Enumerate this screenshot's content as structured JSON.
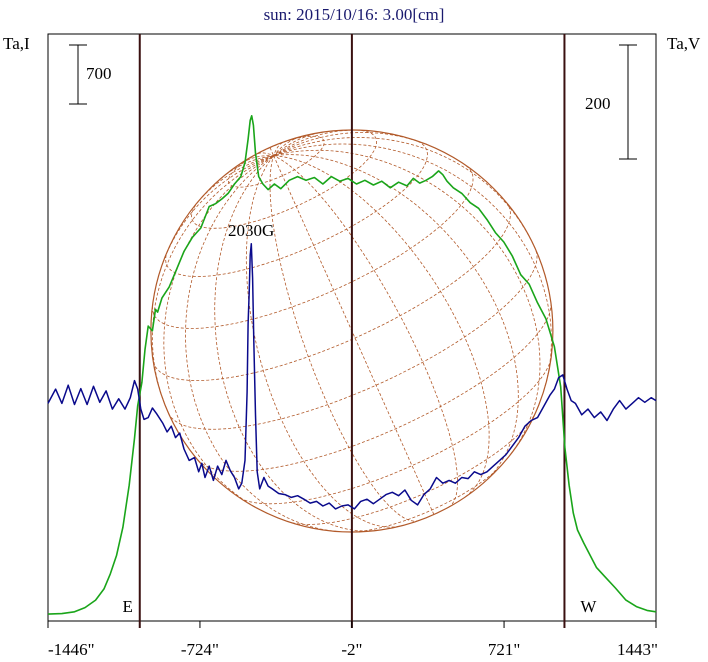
{
  "chart_data": {
    "type": "line",
    "title": "sun: 2015/10/16: 3.00[cm]",
    "left_axis_label": "Ta,I",
    "right_axis_label": "Ta,V",
    "left_scale_bar": "700",
    "right_scale_bar": "200",
    "x_ticks": [
      "-1446\"",
      "-724\"",
      "-2\"",
      "721\"",
      "1443\""
    ],
    "x_tick_values": [
      -1446,
      -724,
      -2,
      721,
      1443
    ],
    "xlim": [
      -1446,
      1443
    ],
    "limb_markers": [
      {
        "label": "E",
        "x": -1010
      },
      {
        "label": "W",
        "x": 1008
      }
    ],
    "center_line_x": -2,
    "annotations": [
      {
        "text": "2030G",
        "x": -490
      }
    ],
    "colors": {
      "intensity": "#1aa51a",
      "polarization": "#0a0a8c",
      "disk": "#b25a2a",
      "frame": "#000000",
      "title": "#1a1a6e"
    },
    "series": [
      {
        "key": "intensity",
        "points": [
          [
            -1446,
            20
          ],
          [
            -1380,
            26
          ],
          [
            -1320,
            45
          ],
          [
            -1270,
            90
          ],
          [
            -1220,
            170
          ],
          [
            -1180,
            290
          ],
          [
            -1150,
            450
          ],
          [
            -1120,
            650
          ],
          [
            -1090,
            950
          ],
          [
            -1060,
            1400
          ],
          [
            -1035,
            1900
          ],
          [
            -1020,
            2250
          ],
          [
            -1000,
            2500
          ],
          [
            -985,
            2850
          ],
          [
            -970,
            3100
          ],
          [
            -950,
            3050
          ],
          [
            -935,
            3280
          ],
          [
            -925,
            3250
          ],
          [
            -905,
            3400
          ],
          [
            -870,
            3520
          ],
          [
            -840,
            3680
          ],
          [
            -800,
            3900
          ],
          [
            -760,
            4050
          ],
          [
            -720,
            4150
          ],
          [
            -680,
            4380
          ],
          [
            -650,
            4410
          ],
          [
            -620,
            4460
          ],
          [
            -590,
            4520
          ],
          [
            -560,
            4620
          ],
          [
            -530,
            4700
          ],
          [
            -510,
            4850
          ],
          [
            -495,
            5100
          ],
          [
            -485,
            5300
          ],
          [
            -478,
            5350
          ],
          [
            -470,
            5250
          ],
          [
            -460,
            4950
          ],
          [
            -445,
            4700
          ],
          [
            -425,
            4620
          ],
          [
            -400,
            4560
          ],
          [
            -370,
            4620
          ],
          [
            -340,
            4570
          ],
          [
            -300,
            4660
          ],
          [
            -260,
            4700
          ],
          [
            -220,
            4660
          ],
          [
            -180,
            4690
          ],
          [
            -140,
            4620
          ],
          [
            -100,
            4700
          ],
          [
            -60,
            4650
          ],
          [
            -20,
            4680
          ],
          [
            20,
            4620
          ],
          [
            60,
            4660
          ],
          [
            100,
            4610
          ],
          [
            140,
            4650
          ],
          [
            180,
            4580
          ],
          [
            220,
            4640
          ],
          [
            260,
            4600
          ],
          [
            290,
            4680
          ],
          [
            320,
            4630
          ],
          [
            350,
            4660
          ],
          [
            380,
            4700
          ],
          [
            410,
            4760
          ],
          [
            430,
            4720
          ],
          [
            450,
            4650
          ],
          [
            480,
            4580
          ],
          [
            520,
            4520
          ],
          [
            560,
            4420
          ],
          [
            600,
            4360
          ],
          [
            640,
            4240
          ],
          [
            680,
            4100
          ],
          [
            720,
            4000
          ],
          [
            760,
            3850
          ],
          [
            800,
            3650
          ],
          [
            840,
            3550
          ],
          [
            880,
            3350
          ],
          [
            920,
            3180
          ],
          [
            960,
            2880
          ],
          [
            990,
            2450
          ],
          [
            1010,
            1800
          ],
          [
            1030,
            1400
          ],
          [
            1050,
            1100
          ],
          [
            1070,
            920
          ],
          [
            1100,
            780
          ],
          [
            1130,
            650
          ],
          [
            1160,
            520
          ],
          [
            1200,
            420
          ],
          [
            1250,
            300
          ],
          [
            1300,
            170
          ],
          [
            1350,
            100
          ],
          [
            1400,
            60
          ],
          [
            1443,
            45
          ]
        ]
      },
      {
        "key": "polarization",
        "points": [
          [
            -1446,
            -20
          ],
          [
            -1410,
            5
          ],
          [
            -1380,
            -20
          ],
          [
            -1350,
            12
          ],
          [
            -1320,
            -22
          ],
          [
            -1290,
            6
          ],
          [
            -1260,
            -22
          ],
          [
            -1230,
            10
          ],
          [
            -1200,
            -18
          ],
          [
            -1170,
            2
          ],
          [
            -1140,
            -30
          ],
          [
            -1110,
            -12
          ],
          [
            -1080,
            -30
          ],
          [
            -1055,
            -10
          ],
          [
            -1035,
            20
          ],
          [
            -1020,
            5
          ],
          [
            -1005,
            -30
          ],
          [
            -990,
            -48
          ],
          [
            -970,
            -45
          ],
          [
            -950,
            -28
          ],
          [
            -930,
            -38
          ],
          [
            -900,
            -55
          ],
          [
            -880,
            -70
          ],
          [
            -860,
            -60
          ],
          [
            -840,
            -80
          ],
          [
            -820,
            -72
          ],
          [
            -800,
            -100
          ],
          [
            -775,
            -120
          ],
          [
            -750,
            -115
          ],
          [
            -730,
            -140
          ],
          [
            -715,
            -125
          ],
          [
            -700,
            -150
          ],
          [
            -680,
            -130
          ],
          [
            -660,
            -155
          ],
          [
            -640,
            -130
          ],
          [
            -620,
            -145
          ],
          [
            -600,
            -120
          ],
          [
            -580,
            -138
          ],
          [
            -560,
            -150
          ],
          [
            -540,
            -170
          ],
          [
            -525,
            -160
          ],
          [
            -510,
            -120
          ],
          [
            -500,
            0
          ],
          [
            -495,
            120
          ],
          [
            -490,
            175
          ],
          [
            -485,
            240
          ],
          [
            -480,
            260
          ],
          [
            -474,
            200
          ],
          [
            -468,
            90
          ],
          [
            -460,
            -40
          ],
          [
            -452,
            -140
          ],
          [
            -440,
            -170
          ],
          [
            -420,
            -150
          ],
          [
            -400,
            -165
          ],
          [
            -380,
            -170
          ],
          [
            -350,
            -178
          ],
          [
            -320,
            -180
          ],
          [
            -290,
            -185
          ],
          [
            -260,
            -182
          ],
          [
            -230,
            -188
          ],
          [
            -200,
            -195
          ],
          [
            -170,
            -192
          ],
          [
            -140,
            -200
          ],
          [
            -110,
            -195
          ],
          [
            -80,
            -205
          ],
          [
            -50,
            -200
          ],
          [
            -20,
            -198
          ],
          [
            10,
            -205
          ],
          [
            40,
            -192
          ],
          [
            70,
            -188
          ],
          [
            100,
            -196
          ],
          [
            130,
            -188
          ],
          [
            160,
            -180
          ],
          [
            190,
            -176
          ],
          [
            220,
            -182
          ],
          [
            250,
            -172
          ],
          [
            280,
            -190
          ],
          [
            310,
            -198
          ],
          [
            340,
            -180
          ],
          [
            370,
            -170
          ],
          [
            400,
            -150
          ],
          [
            430,
            -160
          ],
          [
            460,
            -155
          ],
          [
            490,
            -160
          ],
          [
            520,
            -150
          ],
          [
            550,
            -152
          ],
          [
            580,
            -140
          ],
          [
            610,
            -145
          ],
          [
            640,
            -140
          ],
          [
            670,
            -130
          ],
          [
            700,
            -120
          ],
          [
            730,
            -110
          ],
          [
            760,
            -95
          ],
          [
            790,
            -80
          ],
          [
            820,
            -60
          ],
          [
            850,
            -50
          ],
          [
            880,
            -45
          ],
          [
            910,
            -25
          ],
          [
            940,
            -5
          ],
          [
            960,
            5
          ],
          [
            980,
            25
          ],
          [
            1000,
            30
          ],
          [
            1020,
            5
          ],
          [
            1040,
            -15
          ],
          [
            1060,
            -20
          ],
          [
            1090,
            -40
          ],
          [
            1120,
            -30
          ],
          [
            1150,
            -45
          ],
          [
            1180,
            -35
          ],
          [
            1210,
            -50
          ],
          [
            1240,
            -30
          ],
          [
            1270,
            -15
          ],
          [
            1300,
            -30
          ],
          [
            1330,
            -20
          ],
          [
            1360,
            -10
          ],
          [
            1390,
            -18
          ],
          [
            1420,
            -10
          ],
          [
            1443,
            -15
          ]
        ]
      }
    ]
  }
}
